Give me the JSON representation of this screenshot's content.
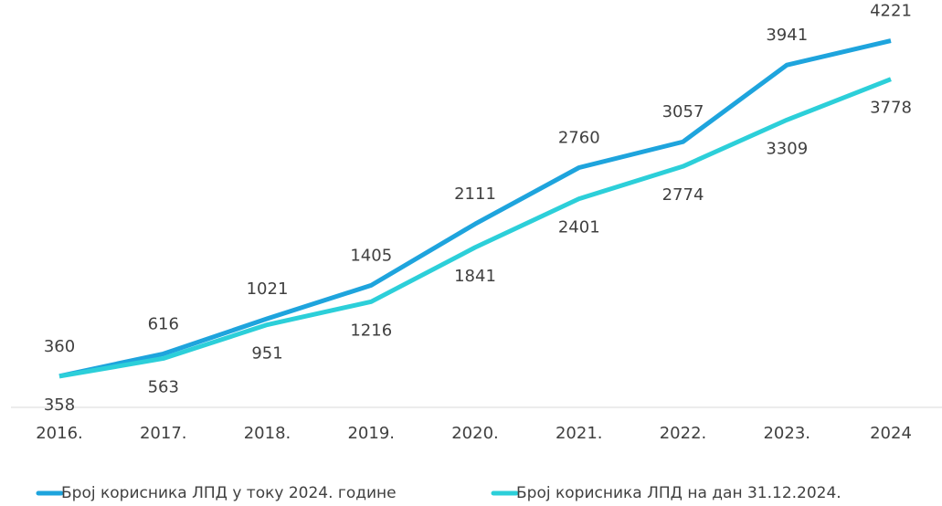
{
  "chart_data": {
    "type": "line",
    "categories": [
      "2016.",
      "2017.",
      "2018.",
      "2019.",
      "2020.",
      "2021.",
      "2022.",
      "2023.",
      "2024"
    ],
    "series": [
      {
        "name": "Број корисника ЛПД у току 2024. године",
        "color": "#1ea4dd",
        "values": [
          360,
          616,
          1021,
          1405,
          2111,
          2760,
          3057,
          3941,
          4221
        ]
      },
      {
        "name": "Број корисника ЛПД на дан 31.12.2024.",
        "color": "#2ccfd9",
        "values": [
          358,
          563,
          951,
          1216,
          1841,
          2401,
          2774,
          3309,
          3778
        ]
      }
    ],
    "ylim": [
      0,
      4500
    ]
  }
}
